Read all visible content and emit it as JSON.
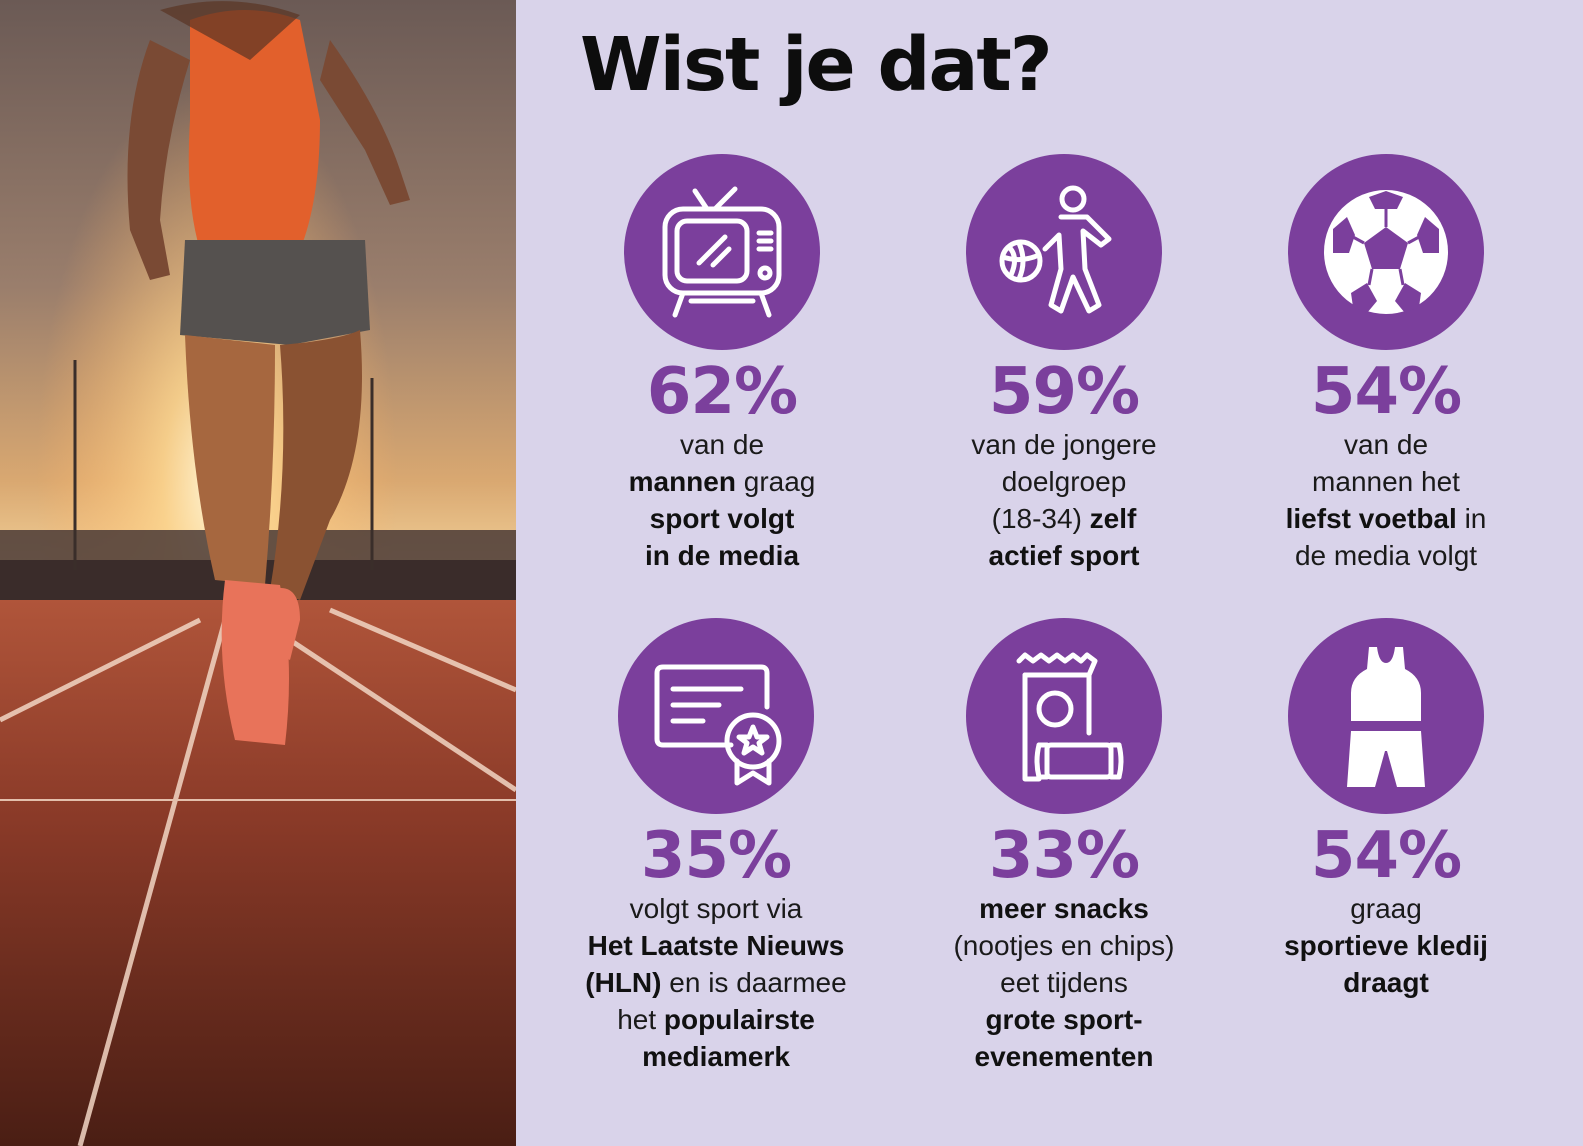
{
  "title": "Wist je dat?",
  "colors": {
    "accent": "#7b3f9c",
    "background": "#d9d3ea"
  },
  "stats": [
    {
      "icon": "tv-icon",
      "pct": "62%",
      "lines": [
        [
          {
            "t": "van de",
            "b": false
          }
        ],
        [
          {
            "t": "mannen",
            "b": true
          },
          {
            "t": " graag",
            "b": false
          }
        ],
        [
          {
            "t": "sport volgt",
            "b": true
          }
        ],
        [
          {
            "t": "in de media",
            "b": true
          }
        ]
      ]
    },
    {
      "icon": "basketball-player-icon",
      "pct": "59%",
      "lines": [
        [
          {
            "t": "van de jongere",
            "b": false
          }
        ],
        [
          {
            "t": "doelgroep",
            "b": false
          }
        ],
        [
          {
            "t": "(18-34) ",
            "b": false
          },
          {
            "t": "zelf",
            "b": true
          }
        ],
        [
          {
            "t": "actief sport",
            "b": true
          }
        ]
      ]
    },
    {
      "icon": "soccer-ball-icon",
      "pct": "54%",
      "lines": [
        [
          {
            "t": "van de",
            "b": false
          }
        ],
        [
          {
            "t": "mannen het",
            "b": false
          }
        ],
        [
          {
            "t": "liefst voetbal",
            "b": true
          },
          {
            "t": " in",
            "b": false
          }
        ],
        [
          {
            "t": "de media volgt",
            "b": false
          }
        ]
      ]
    },
    {
      "icon": "certificate-icon",
      "pct": "35%",
      "lines": [
        [
          {
            "t": "volgt sport via",
            "b": false
          }
        ],
        [
          {
            "t": "Het Laatste Nieuws",
            "b": true
          }
        ],
        [
          {
            "t": "(HLN)",
            "b": true
          },
          {
            "t": " en is daarmee",
            "b": false
          }
        ],
        [
          {
            "t": "het ",
            "b": false
          },
          {
            "t": "populairste",
            "b": true
          }
        ],
        [
          {
            "t": "mediamerk",
            "b": true
          }
        ]
      ]
    },
    {
      "icon": "snacks-icon",
      "pct": "33%",
      "lines": [
        [
          {
            "t": "meer snacks",
            "b": true
          }
        ],
        [
          {
            "t": "(nootjes en chips)",
            "b": false
          }
        ],
        [
          {
            "t": "eet tijdens",
            "b": false
          }
        ],
        [
          {
            "t": "grote sport-",
            "b": true
          }
        ],
        [
          {
            "t": "evenementen",
            "b": true
          }
        ]
      ]
    },
    {
      "icon": "sportswear-icon",
      "pct": "54%",
      "lines": [
        [
          {
            "t": "graag",
            "b": false
          }
        ],
        [
          {
            "t": "sportieve kledij",
            "b": true
          }
        ],
        [
          {
            "t": "draagt",
            "b": true
          }
        ]
      ]
    }
  ]
}
